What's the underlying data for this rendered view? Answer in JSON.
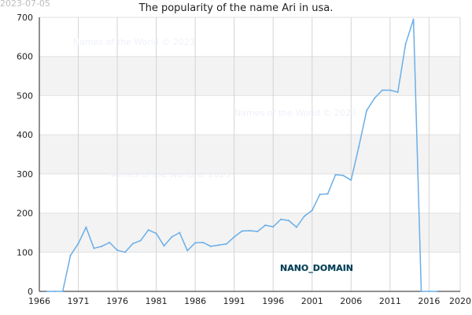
{
  "stamp": "2023-07-05",
  "chart_data": {
    "type": "line",
    "title": "The popularity of the name Ari in usa.",
    "xlabel": "",
    "ylabel": "",
    "xlim": [
      1966,
      2020
    ],
    "ylim": [
      0,
      700
    ],
    "xticks": [
      1966,
      1971,
      1976,
      1981,
      1986,
      1991,
      1996,
      2001,
      2006,
      2011,
      2016,
      2020
    ],
    "yticks": [
      0,
      100,
      200,
      300,
      400,
      500,
      600,
      700
    ],
    "grid": true,
    "line_color": "#6aaee8",
    "band_color": "#f3f3f3",
    "x": [
      1967,
      1968,
      1969,
      1970,
      1971,
      1972,
      1973,
      1974,
      1975,
      1976,
      1977,
      1978,
      1979,
      1980,
      1981,
      1982,
      1983,
      1984,
      1985,
      1986,
      1987,
      1988,
      1989,
      1990,
      1991,
      1992,
      1993,
      1994,
      1995,
      1996,
      1997,
      1998,
      1999,
      2000,
      2001,
      2002,
      2003,
      2004,
      2005,
      2006,
      2007,
      2008,
      2009,
      2010,
      2011,
      2012,
      2013,
      2014,
      2015,
      2016,
      2017
    ],
    "values": [
      0,
      0,
      0,
      92,
      122,
      164,
      110,
      115,
      125,
      105,
      100,
      122,
      130,
      157,
      148,
      116,
      139,
      150,
      104,
      124,
      125,
      115,
      118,
      121,
      139,
      154,
      155,
      153,
      169,
      165,
      184,
      181,
      164,
      192,
      207,
      248,
      249,
      298,
      296,
      284,
      370,
      462,
      493,
      514,
      514,
      509,
      632,
      695,
      0,
      0,
      0
    ],
    "watermarks": [
      "Names of the World © 2023",
      "Names of the World © 2023",
      "Names of the World © 2023"
    ],
    "annotation": "NANO_DOMAIN"
  }
}
